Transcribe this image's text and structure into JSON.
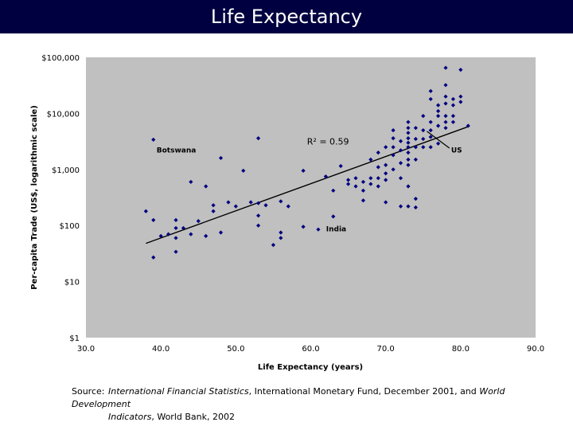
{
  "slide": {
    "title": "Life Expectancy",
    "source": {
      "label": "Source:",
      "part1_italic": "International Financial Statistics",
      "part2": ", International Monetary Fund, December 2001, and ",
      "part3_italic": "World Development",
      "part4_italic": "Indicators",
      "part5": ", World Bank, 2002"
    }
  },
  "colors": {
    "title_bg": "#000040",
    "plot_bg": "#c0c0c0",
    "marker": "#000080",
    "trend": "#000000"
  },
  "chart_data": {
    "type": "scatter",
    "title": "",
    "xlabel": "Life Expectancy (years)",
    "ylabel": "Per-capita Trade (US$, logarithmic scale)",
    "xlim": [
      30,
      90
    ],
    "ylim": [
      1,
      100000
    ],
    "y_scale": "log",
    "x_ticks": [
      "30.0",
      "40.0",
      "50.0",
      "60.0",
      "70.0",
      "80.0",
      "90.0"
    ],
    "y_ticks": [
      "$1",
      "$10",
      "$100",
      "$1,000",
      "$10,000",
      "$100,000"
    ],
    "y_tick_values": [
      1,
      10,
      100,
      1000,
      10000,
      100000
    ],
    "grid": false,
    "r2_label": "R² = 0.59",
    "annotations": [
      {
        "text": "Botswana",
        "x": 39,
        "y": 3400
      },
      {
        "text": "US",
        "x": 77,
        "y": 4800
      },
      {
        "text": "India",
        "x": 63,
        "y": 90
      }
    ],
    "trendline": {
      "x": [
        38,
        81
      ],
      "y": [
        48,
        5800
      ]
    },
    "points": [
      [
        38,
        180
      ],
      [
        39,
        3400
      ],
      [
        39,
        125
      ],
      [
        39,
        27
      ],
      [
        40,
        65
      ],
      [
        41,
        70
      ],
      [
        42,
        125
      ],
      [
        42,
        90
      ],
      [
        42,
        60
      ],
      [
        42,
        34
      ],
      [
        43,
        90
      ],
      [
        44,
        70
      ],
      [
        44,
        600
      ],
      [
        45,
        120
      ],
      [
        46,
        500
      ],
      [
        46,
        65
      ],
      [
        47,
        230
      ],
      [
        47,
        180
      ],
      [
        48,
        1600
      ],
      [
        48,
        75
      ],
      [
        49,
        260
      ],
      [
        50,
        220
      ],
      [
        51,
        950
      ],
      [
        52,
        260
      ],
      [
        53,
        3600
      ],
      [
        53,
        250
      ],
      [
        53,
        150
      ],
      [
        53,
        100
      ],
      [
        54,
        230
      ],
      [
        55,
        45
      ],
      [
        56,
        75
      ],
      [
        56,
        60
      ],
      [
        56,
        270
      ],
      [
        57,
        220
      ],
      [
        59,
        950
      ],
      [
        59,
        95
      ],
      [
        61,
        85
      ],
      [
        62,
        750
      ],
      [
        63,
        420
      ],
      [
        63,
        145
      ],
      [
        64,
        1150
      ],
      [
        65,
        650
      ],
      [
        65,
        550
      ],
      [
        66,
        500
      ],
      [
        66,
        700
      ],
      [
        67,
        600
      ],
      [
        67,
        420
      ],
      [
        67,
        280
      ],
      [
        68,
        1500
      ],
      [
        68,
        700
      ],
      [
        68,
        550
      ],
      [
        69,
        2000
      ],
      [
        69,
        1100
      ],
      [
        69,
        700
      ],
      [
        69,
        500
      ],
      [
        70,
        2500
      ],
      [
        70,
        1200
      ],
      [
        70,
        850
      ],
      [
        70,
        650
      ],
      [
        70,
        260
      ],
      [
        71,
        5000
      ],
      [
        71,
        3600
      ],
      [
        71,
        2500
      ],
      [
        71,
        1800
      ],
      [
        71,
        1000
      ],
      [
        72,
        3200
      ],
      [
        72,
        2200
      ],
      [
        72,
        1300
      ],
      [
        72,
        700
      ],
      [
        72,
        220
      ],
      [
        73,
        7000
      ],
      [
        73,
        5500
      ],
      [
        73,
        4500
      ],
      [
        73,
        3600
      ],
      [
        73,
        3000
      ],
      [
        73,
        2500
      ],
      [
        73,
        2000
      ],
      [
        73,
        1500
      ],
      [
        73,
        1200
      ],
      [
        73,
        500
      ],
      [
        73,
        220
      ],
      [
        74,
        5500
      ],
      [
        74,
        3500
      ],
      [
        74,
        2500
      ],
      [
        74,
        1500
      ],
      [
        74,
        300
      ],
      [
        74,
        210
      ],
      [
        75,
        9000
      ],
      [
        75,
        5000
      ],
      [
        75,
        3500
      ],
      [
        75,
        2500
      ],
      [
        76,
        25000
      ],
      [
        76,
        18000
      ],
      [
        76,
        7000
      ],
      [
        76,
        5000
      ],
      [
        76,
        3800
      ],
      [
        76,
        2500
      ],
      [
        77,
        14000
      ],
      [
        77,
        11000
      ],
      [
        77,
        9000
      ],
      [
        77,
        6000
      ],
      [
        77,
        2900
      ],
      [
        78,
        65000
      ],
      [
        78,
        32000
      ],
      [
        78,
        20000
      ],
      [
        78,
        15000
      ],
      [
        78,
        9000
      ],
      [
        78,
        7000
      ],
      [
        78,
        5500
      ],
      [
        79,
        18000
      ],
      [
        79,
        14000
      ],
      [
        79,
        9000
      ],
      [
        79,
        7000
      ],
      [
        80,
        60000
      ],
      [
        80,
        20000
      ],
      [
        80,
        16000
      ],
      [
        81,
        6000
      ]
    ]
  }
}
